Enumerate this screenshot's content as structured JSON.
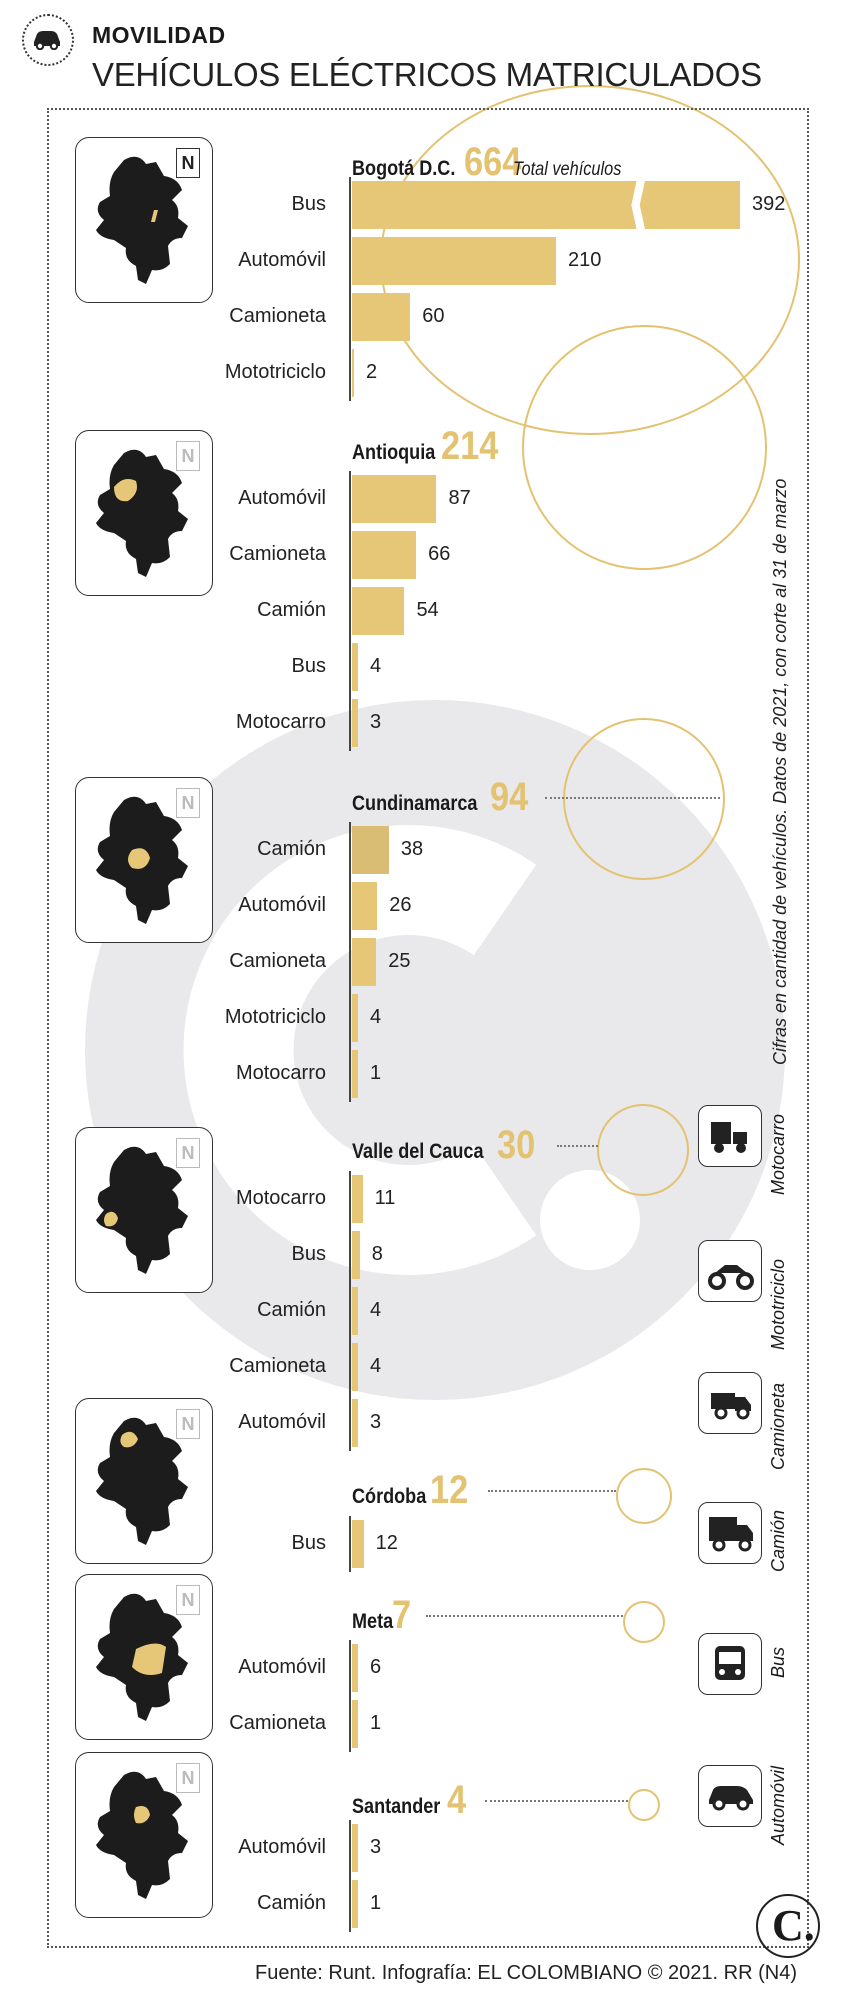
{
  "header": {
    "section": "MOVILIDAD",
    "title": "VEHÍCULOS ELÉCTRICOS MATRICULADOS"
  },
  "side_note": "Cifras en cantidad de vehículos. Datos de 2021, con corte al 31 de marzo",
  "footer": "Fuente: Runt. Infografía: EL COLOMBIANO © 2021. RR (N4)",
  "north_label": "N",
  "logo_letter": "C.",
  "accent_color": "#e6c677",
  "legend": [
    {
      "label": "Motocarro",
      "icon": "motocarro-icon"
    },
    {
      "label": "Mototriciclo",
      "icon": "mototriciclo-icon"
    },
    {
      "label": "Camioneta",
      "icon": "camioneta-icon"
    },
    {
      "label": "Camión",
      "icon": "camion-icon"
    },
    {
      "label": "Bus",
      "icon": "bus-icon"
    },
    {
      "label": "Automóvil",
      "icon": "automovil-icon"
    }
  ],
  "chart_data": {
    "type": "bar",
    "title": "VEHÍCULOS ELÉCTRICOS MATRICULADOS",
    "orientation": "horizontal",
    "unit": "vehículos",
    "regions": [
      {
        "name": "Bogotá D.C.",
        "total": 664,
        "total_note": "Total vehículos",
        "categories": [
          "Bus",
          "Automóvil",
          "Camioneta",
          "Mototriciclo"
        ],
        "values": [
          392,
          210,
          60,
          2
        ],
        "broken_bar": "Bus"
      },
      {
        "name": "Antioquia",
        "total": 214,
        "categories": [
          "Automóvil",
          "Camioneta",
          "Camión",
          "Bus",
          "Motocarro"
        ],
        "values": [
          87,
          66,
          54,
          4,
          3
        ]
      },
      {
        "name": "Cundinamarca",
        "total": 94,
        "categories": [
          "Camión",
          "Automóvil",
          "Camioneta",
          "Mototriciclo",
          "Motocarro"
        ],
        "values": [
          38,
          26,
          25,
          4,
          1
        ]
      },
      {
        "name": "Valle del Cauca",
        "total": 30,
        "categories": [
          "Motocarro",
          "Bus",
          "Camión",
          "Camioneta",
          "Automóvil"
        ],
        "values": [
          11,
          8,
          4,
          4,
          3
        ]
      },
      {
        "name": "Córdoba",
        "total": 12,
        "categories": [
          "Bus"
        ],
        "values": [
          12
        ]
      },
      {
        "name": "Meta",
        "total": 7,
        "categories": [
          "Automóvil",
          "Camioneta"
        ],
        "values": [
          6,
          1
        ]
      },
      {
        "name": "Santander",
        "total": 4,
        "categories": [
          "Automóvil",
          "Camión"
        ],
        "values": [
          3,
          1
        ]
      }
    ]
  }
}
